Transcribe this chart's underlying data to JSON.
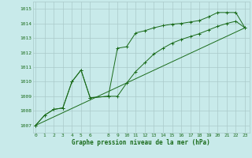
{
  "xlabel": "Graphe pression niveau de la mer (hPa)",
  "background_color": "#c8eaea",
  "grid_color": "#aacaca",
  "line_color": "#1a6b1a",
  "ylim": [
    1006.5,
    1015.5
  ],
  "yticks": [
    1007,
    1008,
    1009,
    1010,
    1011,
    1012,
    1013,
    1014,
    1015
  ],
  "xticks": [
    0,
    1,
    2,
    3,
    4,
    5,
    6,
    8,
    9,
    10,
    11,
    12,
    13,
    14,
    15,
    16,
    17,
    18,
    19,
    20,
    21,
    22,
    23
  ],
  "xlim": [
    -0.3,
    23.5
  ],
  "series1_x": [
    0,
    1,
    2,
    3,
    4,
    5,
    6,
    8,
    9,
    10,
    11,
    12,
    13,
    14,
    15,
    16,
    17,
    18,
    19,
    20,
    21,
    22,
    23
  ],
  "series1_y": [
    1007.0,
    1007.7,
    1008.1,
    1008.2,
    1010.0,
    1010.8,
    1008.9,
    1009.0,
    1012.3,
    1012.4,
    1013.35,
    1013.5,
    1013.7,
    1013.85,
    1013.95,
    1014.0,
    1014.1,
    1014.2,
    1014.45,
    1014.75,
    1014.75,
    1014.75,
    1013.7
  ],
  "series2_x": [
    0,
    1,
    2,
    3,
    4,
    5,
    6,
    8,
    9,
    10,
    11,
    12,
    13,
    14,
    15,
    16,
    17,
    18,
    19,
    20,
    21,
    22,
    23
  ],
  "series2_y": [
    1007.0,
    1007.7,
    1008.1,
    1008.2,
    1010.0,
    1010.8,
    1008.9,
    1009.0,
    1009.0,
    1009.9,
    1010.7,
    1011.3,
    1011.9,
    1012.3,
    1012.65,
    1012.9,
    1013.1,
    1013.3,
    1013.55,
    1013.8,
    1014.0,
    1014.15,
    1013.7
  ],
  "series3_x": [
    0,
    23
  ],
  "series3_y": [
    1007.0,
    1013.7
  ]
}
